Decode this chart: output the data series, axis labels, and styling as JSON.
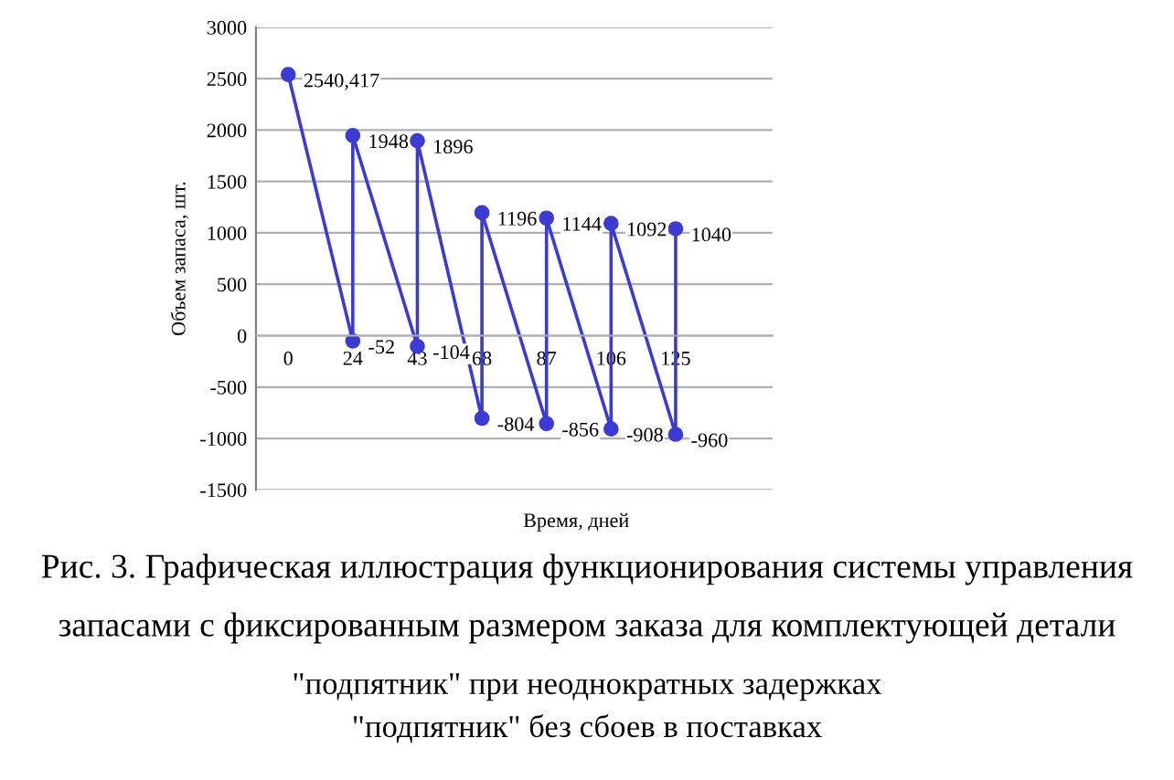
{
  "chart_data": {
    "type": "line",
    "xlabel": "Время, дней",
    "ylabel": "Объем запаса, шт.",
    "series": [
      {
        "color": "#3b3bd4",
        "x": [
          "0",
          "24",
          "24",
          "43",
          "43",
          "68",
          "68",
          "87",
          "87",
          "106",
          "106",
          "125",
          "125"
        ],
        "values": [
          2540.417,
          -52,
          1948,
          -104,
          1896,
          -804,
          1196,
          -856,
          1144,
          -908,
          1092,
          -960,
          1040
        ],
        "value_labels": [
          "2540,417",
          "-52",
          "1948",
          "-104",
          "1896",
          "-804",
          "1196",
          "-856",
          "1144",
          "-908",
          "1092",
          "-960",
          "1040"
        ]
      }
    ],
    "categories": [
      "0",
      "24",
      "43",
      "68",
      "87",
      "106",
      "125"
    ],
    "ylim": [
      -1500,
      3000
    ],
    "yticks": [
      -1500,
      -1000,
      -500,
      0,
      500,
      1000,
      1500,
      2000,
      2500,
      3000
    ],
    "grid": "y",
    "marker": "circle",
    "line_style": "solid",
    "annotations": [
      "Рис. 3. Графическая иллюстрация функционирования системы управления",
      "запасами с фиксированным размером заказа для комплектующей детали",
      "\"подпятник\" при неоднократных задержках",
      "\"подпятник\" без сбоев в поставках"
    ]
  }
}
